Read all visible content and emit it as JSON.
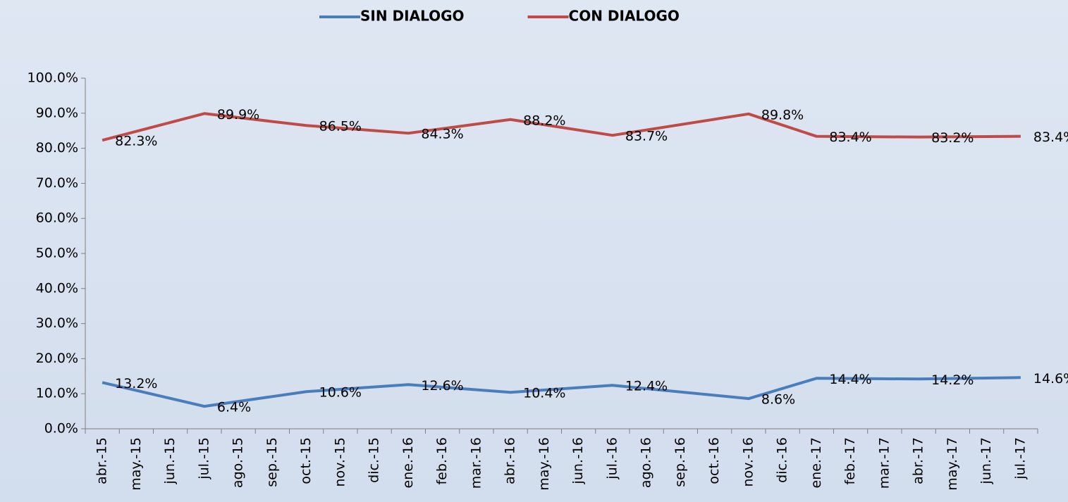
{
  "chart_data": {
    "type": "line",
    "categories": [
      "abr.-15",
      "may.-15",
      "jun.-15",
      "jul.-15",
      "ago.-15",
      "sep.-15",
      "oct.-15",
      "nov.-15",
      "dic.-15",
      "ene.-16",
      "feb.-16",
      "mar.-16",
      "abr.-16",
      "may.-16",
      "jun.-16",
      "jul.-16",
      "ago.-16",
      "sep.-16",
      "oct.-16",
      "nov.-16",
      "dic.-16",
      "ene.-17",
      "feb.-17",
      "mar.-17",
      "abr.-17",
      "may.-17",
      "jun.-17",
      "jul.-17"
    ],
    "series": [
      {
        "name": "SIN DIALOGO",
        "color": "#4a7ebb",
        "values": [
          13.2,
          null,
          null,
          6.4,
          null,
          null,
          10.6,
          null,
          null,
          12.6,
          null,
          null,
          10.4,
          null,
          null,
          12.4,
          null,
          null,
          null,
          8.6,
          null,
          14.4,
          null,
          null,
          14.2,
          null,
          null,
          14.6
        ],
        "value_labels": [
          "13.2%",
          null,
          null,
          "6.4%",
          null,
          null,
          "10.6%",
          null,
          null,
          "12.6%",
          null,
          null,
          "10.4%",
          null,
          null,
          "12.4%",
          null,
          null,
          null,
          "8.6%",
          null,
          "14.4%",
          null,
          null,
          "14.2%",
          null,
          null,
          "14.6%"
        ]
      },
      {
        "name": "CON DIALOGO",
        "color": "#be4b48",
        "values": [
          82.3,
          null,
          null,
          89.9,
          null,
          null,
          86.5,
          null,
          null,
          84.3,
          null,
          null,
          88.2,
          null,
          null,
          83.7,
          null,
          null,
          null,
          89.8,
          null,
          83.4,
          null,
          null,
          83.2,
          null,
          null,
          83.4
        ],
        "value_labels": [
          "82.3%",
          null,
          null,
          "89.9%",
          null,
          null,
          "86.5%",
          null,
          null,
          "84.3%",
          null,
          null,
          "88.2%",
          null,
          null,
          "83.7%",
          null,
          null,
          null,
          "89.8%",
          null,
          "83.4%",
          null,
          null,
          "83.2%",
          null,
          null,
          "83.4%"
        ]
      }
    ],
    "span_gaps": true,
    "legend": "top",
    "ylim": [
      0,
      100
    ],
    "yticks": [
      {
        "value": 0,
        "label": "0.0%"
      },
      {
        "value": 10,
        "label": "10.0%"
      },
      {
        "value": 20,
        "label": "20.0%"
      },
      {
        "value": 30,
        "label": "30.0%"
      },
      {
        "value": 40,
        "label": "40.0%"
      },
      {
        "value": 50,
        "label": "50.0%"
      },
      {
        "value": 60,
        "label": "60.0%"
      },
      {
        "value": 70,
        "label": "70.0%"
      },
      {
        "value": 80,
        "label": "80.0%"
      },
      {
        "value": 90,
        "label": "90.0%"
      },
      {
        "value": 100,
        "label": "100.0%"
      }
    ]
  }
}
